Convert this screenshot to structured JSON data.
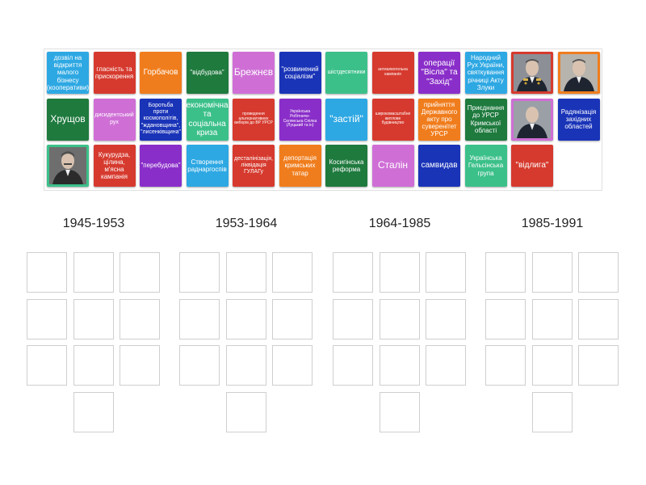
{
  "colors": {
    "green": "#2e8b4e",
    "red": "#d63a2e",
    "orange": "#f07d1d",
    "pink": "#cf6fd6",
    "blue": "#1a34b8",
    "lightblue": "#2ea8e3",
    "darkgreen": "#1f7a3e",
    "teal": "#3cc08a",
    "purple": "#8a2ec9"
  },
  "cards": [
    {
      "text": "дозвіл на відкриття малого бізнесу (кооперативи)",
      "color": "lightblue"
    },
    {
      "text": "гласність та прискорення",
      "color": "red"
    },
    {
      "text": "Горбачов",
      "color": "orange"
    },
    {
      "text": "\"відбудова\"",
      "color": "darkgreen"
    },
    {
      "text": "Брежнєв",
      "color": "pink"
    },
    {
      "text": "\"розвинений соціалізм\"",
      "color": "blue"
    },
    {
      "text": "шістдесятники",
      "color": "teal"
    },
    {
      "text": "антиалкогольна кампанія",
      "color": "red"
    },
    {
      "text": "операції \"Вісла\" та \"Захід\"",
      "color": "purple"
    },
    {
      "text": "Народний Рух України, святкування річниці Акту Злуки",
      "color": "lightblue"
    },
    {
      "photo": "brezhnev-portrait",
      "color": "red"
    },
    {
      "photo": "gorbachev-portrait",
      "color": "orange"
    },
    {
      "text": "Хрущов",
      "color": "darkgreen"
    },
    {
      "text": "дисидентський рух",
      "color": "pink"
    },
    {
      "text": "Боротьба проти космополітів, \"ждановщина\", \"лисенківщина\"",
      "color": "blue"
    },
    {
      "text": "економічна та соціальна криза",
      "color": "teal"
    },
    {
      "text": "проведення альтернативних виборів до ВР УРСР",
      "color": "red"
    },
    {
      "text": "Українська Робітничо-Селянська Спілка (Луцький та ін)",
      "color": "purple"
    },
    {
      "text": "\"застій\"",
      "color": "lightblue"
    },
    {
      "text": "широкомасштабне житлове будівництво",
      "color": "red"
    },
    {
      "text": "прийняття Державного акту про суверенітет УРСР",
      "color": "orange"
    },
    {
      "text": "Приєднання до УРСР Кримської області",
      "color": "darkgreen"
    },
    {
      "photo": "khrushchev-portrait",
      "color": "pink"
    },
    {
      "text": "Радянізація західних областей",
      "color": "blue"
    },
    {
      "photo": "stalin-portrait",
      "color": "teal"
    },
    {
      "text": "Кукурудза, цілина, м'ясна кампанія",
      "color": "red"
    },
    {
      "text": "\"перебудова\"",
      "color": "purple"
    },
    {
      "text": "Створення раднаргоспів",
      "color": "lightblue"
    },
    {
      "text": "десталінізація, ліквідація ГУЛАГу",
      "color": "red"
    },
    {
      "text": "депортація кримських татар",
      "color": "orange"
    },
    {
      "text": "Косигінська реформа",
      "color": "darkgreen"
    },
    {
      "text": "Сталін",
      "color": "pink"
    },
    {
      "text": "самвидав",
      "color": "blue"
    },
    {
      "text": "Українська Гельсінська група",
      "color": "teal"
    },
    {
      "text": "\"відлига\"",
      "color": "red"
    }
  ],
  "columns": [
    {
      "title": "1945-1953"
    },
    {
      "title": "1953-1964"
    },
    {
      "title": "1964-1985"
    },
    {
      "title": "1985-1991"
    }
  ]
}
